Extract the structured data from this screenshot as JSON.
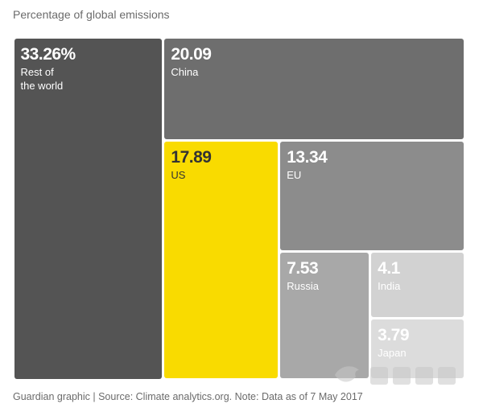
{
  "title": "Percentage of global emissions",
  "source": "Guardian graphic | Source: Climate analytics.org. Note: Data as of 7 May 2017",
  "chart_data": {
    "type": "treemap",
    "title": "Percentage of global emissions",
    "unit": "%",
    "items": [
      {
        "label": "Rest of\nthe world",
        "value": 33.26,
        "display": "33.26%",
        "color": "#545454",
        "text_color": "#ffffff"
      },
      {
        "label": "China",
        "value": 20.09,
        "display": "20.09",
        "color": "#6e6e6e",
        "text_color": "#ffffff"
      },
      {
        "label": "US",
        "value": 17.89,
        "display": "17.89",
        "color": "#f9db00",
        "text_color": "#333333"
      },
      {
        "label": "EU",
        "value": 13.34,
        "display": "13.34",
        "color": "#8c8c8c",
        "text_color": "#ffffff"
      },
      {
        "label": "Russia",
        "value": 7.53,
        "display": "7.53",
        "color": "#a8a8a8",
        "text_color": "#ffffff"
      },
      {
        "label": "India",
        "value": 4.1,
        "display": "4.1",
        "color": "#d2d2d2",
        "text_color": "#ffffff"
      },
      {
        "label": "Japan",
        "value": 3.79,
        "display": "3.79",
        "color": "#dcdcdc",
        "text_color": "#ffffff"
      }
    ]
  }
}
